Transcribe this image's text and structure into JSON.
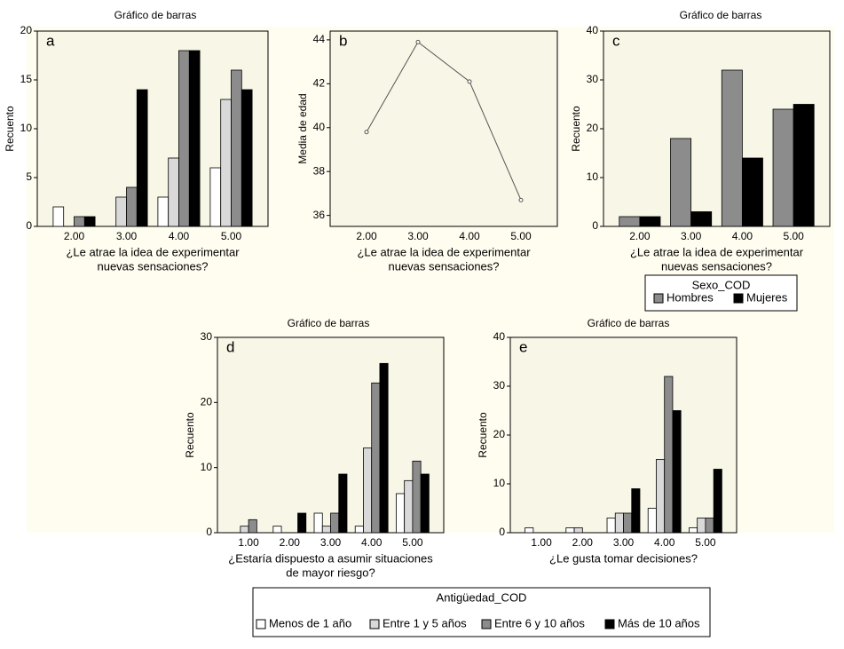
{
  "chart_data": [
    {
      "type": "bar",
      "title": "Gráfico de barras",
      "label": "a",
      "ylabel": "Recuento",
      "xlabel": [
        "¿Le atrae la idea de experimentar",
        "nuevas sensaciones?"
      ],
      "categories": [
        "2.00",
        "3.00",
        "4.00",
        "5.00"
      ],
      "series": [
        {
          "name": "Menos de 1 año",
          "color": "#ffffff",
          "values": [
            2,
            null,
            3,
            6
          ]
        },
        {
          "name": "Entre 1 y 5 años",
          "color": "#d9d9d9",
          "values": [
            null,
            3,
            7,
            13
          ]
        },
        {
          "name": "Entre 6 y 10 años",
          "color": "#8c8c8c",
          "values": [
            1,
            4,
            18,
            16
          ]
        },
        {
          "name": "Más de 10 años",
          "color": "#000000",
          "values": [
            1,
            14,
            18,
            14
          ]
        }
      ],
      "ylim": [
        0,
        20
      ],
      "yticks": [
        0,
        5,
        10,
        15,
        20
      ]
    },
    {
      "type": "line",
      "label": "b",
      "ylabel": "Media de edad",
      "xlabel": [
        "¿Le atrae la idea de experimentar",
        "nuevas sensaciones?"
      ],
      "categories": [
        "2.00",
        "3.00",
        "4.00",
        "5.00"
      ],
      "values": [
        39.8,
        43.9,
        42.1,
        36.7
      ],
      "color": "#555555",
      "ylim": [
        35.5,
        44.4
      ],
      "yticks": [
        36,
        38,
        40,
        42,
        44
      ]
    },
    {
      "type": "bar",
      "title": "Gráfico de barras",
      "label": "c",
      "ylabel": "Recuento",
      "xlabel": [
        "¿Le atrae la idea de experimentar",
        "nuevas sensaciones?"
      ],
      "categories": [
        "2.00",
        "3.00",
        "4.00",
        "5.00"
      ],
      "legend_title": "Sexo_COD",
      "series": [
        {
          "name": "Hombres",
          "color": "#8c8c8c",
          "values": [
            2,
            18,
            32,
            24
          ]
        },
        {
          "name": "Mujeres",
          "color": "#000000",
          "values": [
            2,
            3,
            14,
            25
          ]
        }
      ],
      "ylim": [
        0,
        40
      ],
      "yticks": [
        0,
        10,
        20,
        30,
        40
      ]
    },
    {
      "type": "bar",
      "title": "Gráfico de barras",
      "label": "d",
      "ylabel": "Recuento",
      "xlabel": [
        "¿Estaría dispuesto a asumir situaciones",
        "de mayor riesgo?"
      ],
      "categories": [
        "1.00",
        "2.00",
        "3.00",
        "4.00",
        "5.00"
      ],
      "legend_title": "Antigüedad_COD",
      "series": [
        {
          "name": "Menos de 1 año",
          "color": "#ffffff",
          "values": [
            null,
            1,
            3,
            1,
            6
          ]
        },
        {
          "name": "Entre 1 y 5 años",
          "color": "#d9d9d9",
          "values": [
            1,
            null,
            1,
            13,
            8
          ]
        },
        {
          "name": "Entre 6 y 10 años",
          "color": "#8c8c8c",
          "values": [
            2,
            null,
            3,
            23,
            11
          ]
        },
        {
          "name": "Más de 10 años",
          "color": "#000000",
          "values": [
            null,
            3,
            9,
            26,
            9
          ]
        }
      ],
      "ylim": [
        0,
        30
      ],
      "yticks": [
        0,
        10,
        20,
        30
      ]
    },
    {
      "type": "bar",
      "title": "Gráfico de barras",
      "label": "e",
      "ylabel": "Recuento",
      "xlabel": [
        "¿Le gusta tomar decisiones?"
      ],
      "categories": [
        "1.00",
        "2.00",
        "3.00",
        "4.00",
        "5.00"
      ],
      "series": [
        {
          "name": "Menos de 1 año",
          "color": "#ffffff",
          "values": [
            1,
            1,
            3,
            5,
            1
          ]
        },
        {
          "name": "Entre 1 y 5 años",
          "color": "#d9d9d9",
          "values": [
            null,
            1,
            4,
            15,
            3
          ]
        },
        {
          "name": "Entre 6 y 10 años",
          "color": "#8c8c8c",
          "values": [
            null,
            null,
            4,
            32,
            3
          ]
        },
        {
          "name": "Más de 10 años",
          "color": "#000000",
          "values": [
            null,
            null,
            9,
            25,
            13
          ]
        }
      ],
      "ylim": [
        0,
        40
      ],
      "yticks": [
        0,
        10,
        20,
        30,
        40
      ]
    }
  ]
}
